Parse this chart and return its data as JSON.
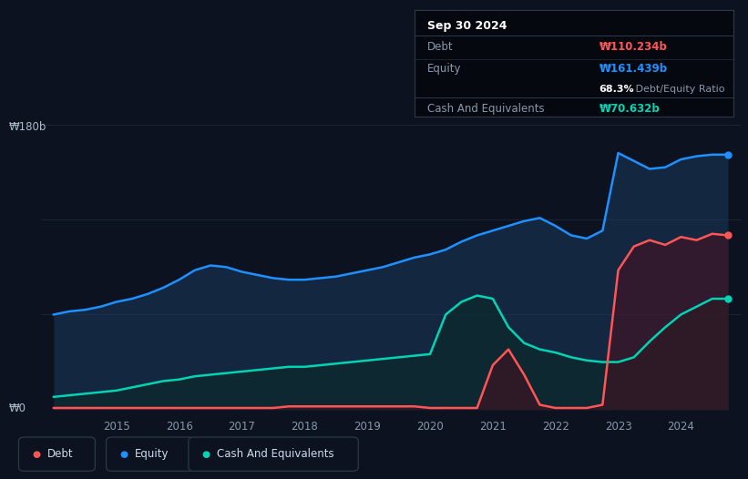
{
  "bg_color": "#0c1220",
  "plot_bg_color": "#0c1220",
  "grid_color": "#1a2535",
  "equity_color": "#1e90ff",
  "debt_color": "#ff5555",
  "cash_color": "#00d4b4",
  "equity_fill": "#1a3a5c",
  "debt_fill": "#4a1020",
  "cash_fill": "#0a2a28",
  "ylabel_top": "₩180b",
  "ylabel_bottom": "₩0",
  "x_ticks": [
    2015,
    2016,
    2017,
    2018,
    2019,
    2020,
    2021,
    2022,
    2023,
    2024
  ],
  "tooltip_title": "Sep 30 2024",
  "tooltip_debt_label": "Debt",
  "tooltip_debt_value": "₩110.234b",
  "tooltip_equity_label": "Equity",
  "tooltip_equity_value": "₩161.439b",
  "tooltip_ratio_bold": "68.3%",
  "tooltip_ratio_rest": " Debt/Equity Ratio",
  "tooltip_cash_label": "Cash And Equivalents",
  "tooltip_cash_value": "₩70.632b",
  "legend_debt": "Debt",
  "legend_equity": "Equity",
  "legend_cash": "Cash And Equivalents",
  "years": [
    2014.0,
    2014.25,
    2014.5,
    2014.75,
    2015.0,
    2015.25,
    2015.5,
    2015.75,
    2016.0,
    2016.25,
    2016.5,
    2016.75,
    2017.0,
    2017.25,
    2017.5,
    2017.75,
    2018.0,
    2018.25,
    2018.5,
    2018.75,
    2019.0,
    2019.25,
    2019.5,
    2019.75,
    2020.0,
    2020.25,
    2020.5,
    2020.75,
    2021.0,
    2021.25,
    2021.5,
    2021.75,
    2022.0,
    2022.25,
    2022.5,
    2022.75,
    2023.0,
    2023.25,
    2023.5,
    2023.75,
    2024.0,
    2024.25,
    2024.5,
    2024.75
  ],
  "equity": [
    60,
    62,
    63,
    65,
    68,
    70,
    73,
    77,
    82,
    88,
    91,
    90,
    87,
    85,
    83,
    82,
    82,
    83,
    84,
    86,
    88,
    90,
    93,
    96,
    98,
    101,
    106,
    110,
    113,
    116,
    119,
    121,
    116,
    110,
    108,
    113,
    162,
    157,
    152,
    153,
    158,
    160,
    161,
    161
  ],
  "debt": [
    1,
    1,
    1,
    1,
    1,
    1,
    1,
    1,
    1,
    1,
    1,
    1,
    1,
    1,
    1,
    2,
    2,
    2,
    2,
    2,
    2,
    2,
    2,
    2,
    1,
    1,
    1,
    1,
    28,
    38,
    22,
    3,
    1,
    1,
    1,
    3,
    88,
    103,
    107,
    104,
    109,
    107,
    111,
    110
  ],
  "cash": [
    8,
    9,
    10,
    11,
    12,
    14,
    16,
    18,
    19,
    21,
    22,
    23,
    24,
    25,
    26,
    27,
    27,
    28,
    29,
    30,
    31,
    32,
    33,
    34,
    35,
    60,
    68,
    72,
    70,
    52,
    42,
    38,
    36,
    33,
    31,
    30,
    30,
    33,
    43,
    52,
    60,
    65,
    70,
    70
  ],
  "ylim": [
    0,
    180
  ],
  "xlim_start": 2013.8,
  "xlim_end": 2024.95
}
